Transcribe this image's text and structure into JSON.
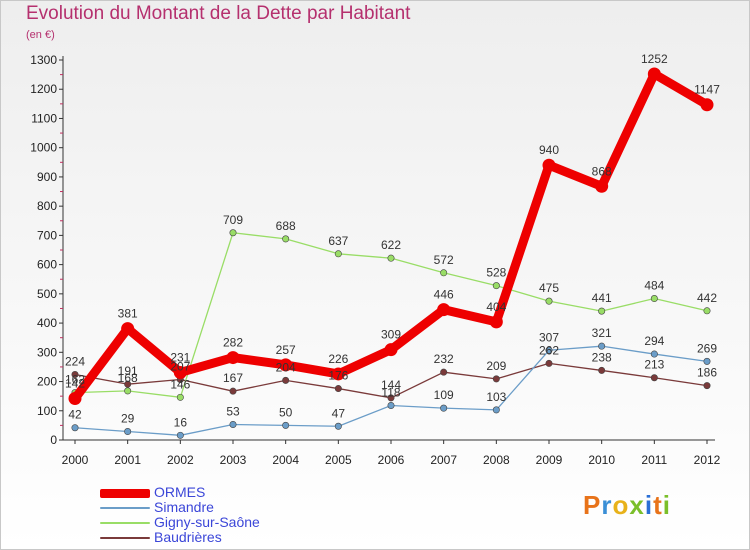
{
  "title": "Evolution du Montant de la Dette par Habitant",
  "unit": "(en €)",
  "brand": {
    "text": "Proxiti",
    "letter_colors": [
      "#e8731a",
      "#3a8fd6",
      "#e8b21a",
      "#7bbf2a",
      "#2a6fd6",
      "#e8731a",
      "#7bbf2a"
    ]
  },
  "chart_data": {
    "type": "line",
    "title": "Evolution du Montant de la Dette par Habitant",
    "subtitle": "(en €)",
    "x": [
      "2000",
      "2001",
      "2002",
      "2003",
      "2004",
      "2005",
      "2006",
      "2007",
      "2008",
      "2009",
      "2010",
      "2011",
      "2012"
    ],
    "ylim": [
      0,
      1300
    ],
    "yticks": [
      0,
      100,
      200,
      300,
      400,
      500,
      600,
      700,
      800,
      900,
      1000,
      1100,
      1200,
      1300
    ],
    "grid": false,
    "legend_position": "bottom-left",
    "series": [
      {
        "name": "ORMES",
        "color": "#ee0000",
        "values": [
          142,
          381,
          231,
          282,
          257,
          226,
          309,
          446,
          404,
          940,
          868,
          1252,
          1147
        ],
        "label_position": "above"
      },
      {
        "name": "Simandre",
        "color": "#6b9dc8",
        "values": [
          42,
          29,
          16,
          53,
          50,
          47,
          118,
          109,
          103,
          307,
          321,
          294,
          269
        ],
        "label_position": "above"
      },
      {
        "name": "Gigny-sur-Saône",
        "color": "#99dd66",
        "values": [
          162,
          168,
          146,
          709,
          688,
          637,
          622,
          572,
          528,
          475,
          441,
          484,
          442
        ],
        "label_position": "above"
      },
      {
        "name": "Baudrières",
        "color": "#7a3a3a",
        "values": [
          224,
          191,
          207,
          167,
          204,
          176,
          144,
          232,
          209,
          262,
          238,
          213,
          186
        ],
        "label_position": "above"
      }
    ]
  }
}
